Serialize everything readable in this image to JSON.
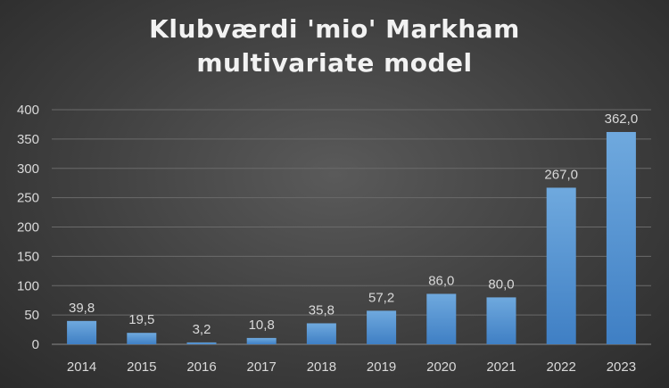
{
  "chart_data": {
    "type": "bar",
    "title_lines": [
      "Klubværdi 'mio' Markham",
      "multivariate model"
    ],
    "categories": [
      "2014",
      "2015",
      "2016",
      "2017",
      "2018",
      "2019",
      "2020",
      "2021",
      "2022",
      "2023"
    ],
    "values": [
      39.8,
      19.5,
      3.2,
      10.8,
      35.8,
      57.2,
      86.0,
      80.0,
      267.0,
      362.0
    ],
    "data_labels": [
      "39,8",
      "19,5",
      "3,2",
      "10,8",
      "35,8",
      "57,2",
      "86,0",
      "80,0",
      "267,0",
      "362,0"
    ],
    "y_ticks": [
      "0",
      "50",
      "100",
      "150",
      "200",
      "250",
      "300",
      "350",
      "400"
    ],
    "ylim": [
      0,
      400
    ],
    "grid": true,
    "legend": "none",
    "bar_color": "#5b9bd5"
  }
}
